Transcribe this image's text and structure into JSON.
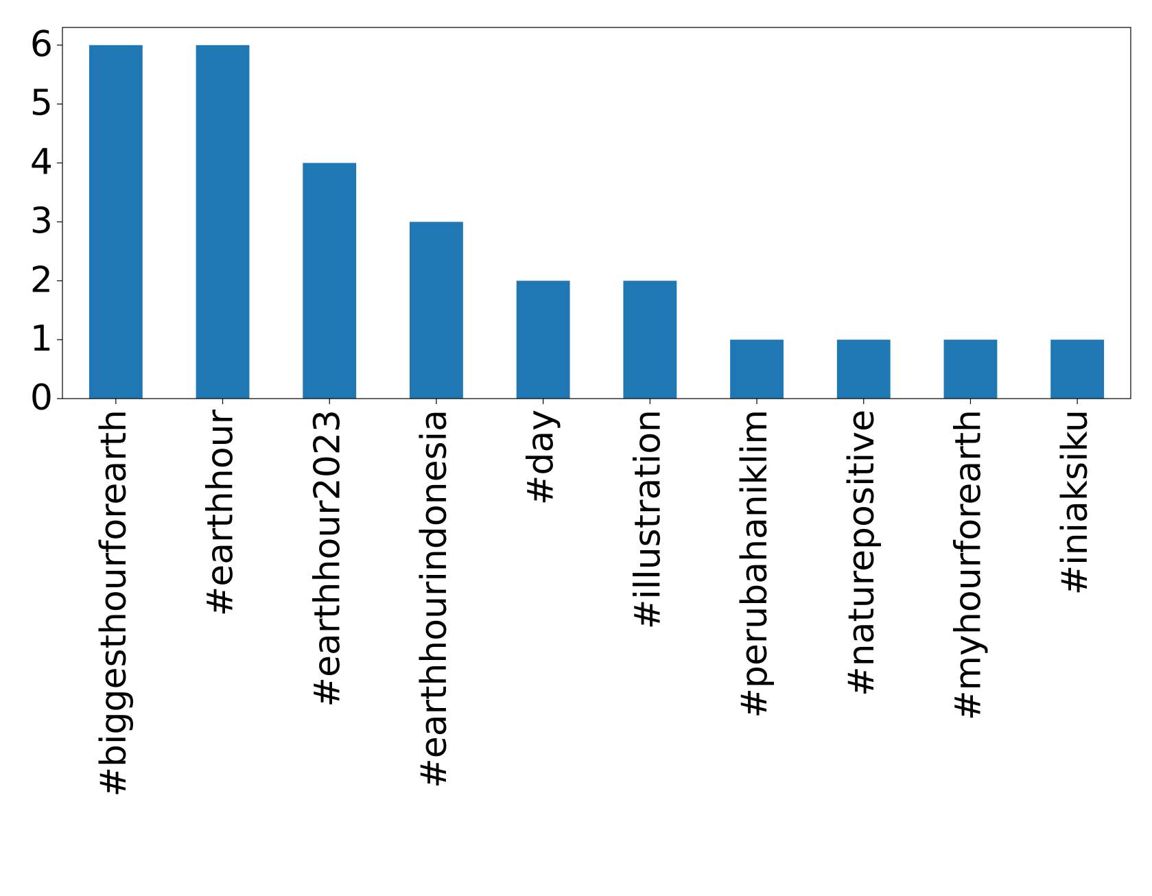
{
  "chart_data": {
    "type": "bar",
    "categories": [
      "#biggesthourforearth",
      "#earthhour",
      "#earthhour2023",
      "#earthhourindonesia",
      "#day",
      "#illustration",
      "#perubahaniklim",
      "#naturepositive",
      "#myhourforearth",
      "#iniaksiku"
    ],
    "values": [
      6,
      6,
      4,
      3,
      2,
      2,
      1,
      1,
      1,
      1
    ],
    "color": "#1f77b4",
    "ylim": [
      0,
      6.3
    ],
    "yticks": [
      0,
      1,
      2,
      3,
      4,
      5,
      6
    ],
    "grid": false
  }
}
